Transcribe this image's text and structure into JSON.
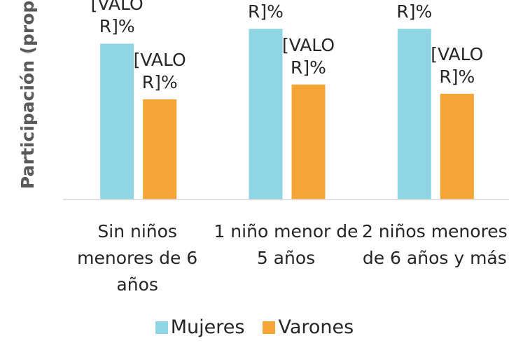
{
  "chart_data": {
    "type": "bar",
    "y_axis_label": "Participación (proporción)",
    "categories": [
      "Sin niños menores de 6 años",
      "1 niño menor de 5 años",
      "2 niños menores de 6 años y más"
    ],
    "series": [
      {
        "name": "Mujeres",
        "color": "#8fd5e4",
        "values": [
          84,
          92,
          92
        ],
        "value_labels": [
          "[VALOR]%",
          "[VALOR]%",
          "[VALOR]%"
        ]
      },
      {
        "name": "Varones",
        "color": "#f5a535",
        "values": [
          54,
          62,
          57
        ],
        "value_labels": [
          "[VALOR]%",
          "[VALOR]%",
          "[VALOR]%"
        ]
      }
    ],
    "ylim": [
      0,
      100
    ]
  }
}
